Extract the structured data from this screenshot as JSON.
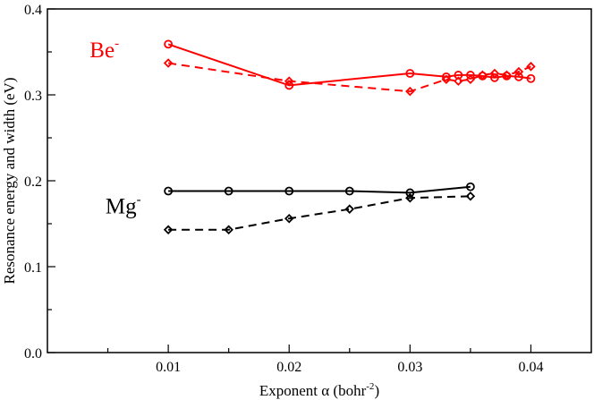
{
  "chart_data": {
    "type": "line",
    "title": "",
    "xlabel": "Exponent α (bohr",
    "xlabel_sup": "-2",
    "xlabel_close": ")",
    "ylabel": "Resonance energy and width (eV)",
    "xlim": [
      0.0,
      0.045
    ],
    "ylim": [
      0.0,
      0.4
    ],
    "xticks": [
      0.01,
      0.02,
      0.03,
      0.04
    ],
    "xtick_labels": [
      "0.01",
      "0.02",
      "0.03",
      "0.04"
    ],
    "yticks": [
      0.0,
      0.1,
      0.2,
      0.3,
      0.4
    ],
    "ytick_labels": [
      "0.0",
      "0.1",
      "0.2",
      "0.3",
      "0.4"
    ],
    "grid": false,
    "legend": "none",
    "annotations": [
      {
        "base": "Be",
        "sup": "-",
        "color": "#ff0000",
        "at": [
          0.0035,
          0.344
        ]
      },
      {
        "base": "Mg",
        "sup": "-",
        "color": "#000000",
        "at": [
          0.0048,
          0.162
        ]
      }
    ],
    "series": [
      {
        "name": "Be- energy",
        "color": "#ff0000",
        "dash": "solid",
        "marker": "circle",
        "x": [
          0.01,
          0.02,
          0.03,
          0.033,
          0.034,
          0.035,
          0.036,
          0.037,
          0.038,
          0.039,
          0.04
        ],
        "y": [
          0.359,
          0.311,
          0.325,
          0.321,
          0.323,
          0.323,
          0.322,
          0.32,
          0.322,
          0.321,
          0.319
        ]
      },
      {
        "name": "Be- width",
        "color": "#ff0000",
        "dash": "dashed",
        "marker": "diamond",
        "x": [
          0.01,
          0.02,
          0.03,
          0.033,
          0.034,
          0.035,
          0.036,
          0.037,
          0.038,
          0.039,
          0.04
        ],
        "y": [
          0.337,
          0.316,
          0.304,
          0.318,
          0.316,
          0.318,
          0.323,
          0.325,
          0.323,
          0.327,
          0.333
        ]
      },
      {
        "name": "Mg- energy",
        "color": "#000000",
        "dash": "solid",
        "marker": "circle",
        "x": [
          0.01,
          0.015,
          0.02,
          0.025,
          0.03,
          0.035
        ],
        "y": [
          0.188,
          0.188,
          0.188,
          0.188,
          0.186,
          0.193
        ]
      },
      {
        "name": "Mg- width",
        "color": "#000000",
        "dash": "dashed",
        "marker": "diamond",
        "x": [
          0.01,
          0.015,
          0.02,
          0.025,
          0.03,
          0.035
        ],
        "y": [
          0.143,
          0.143,
          0.156,
          0.167,
          0.18,
          0.182
        ]
      }
    ]
  }
}
